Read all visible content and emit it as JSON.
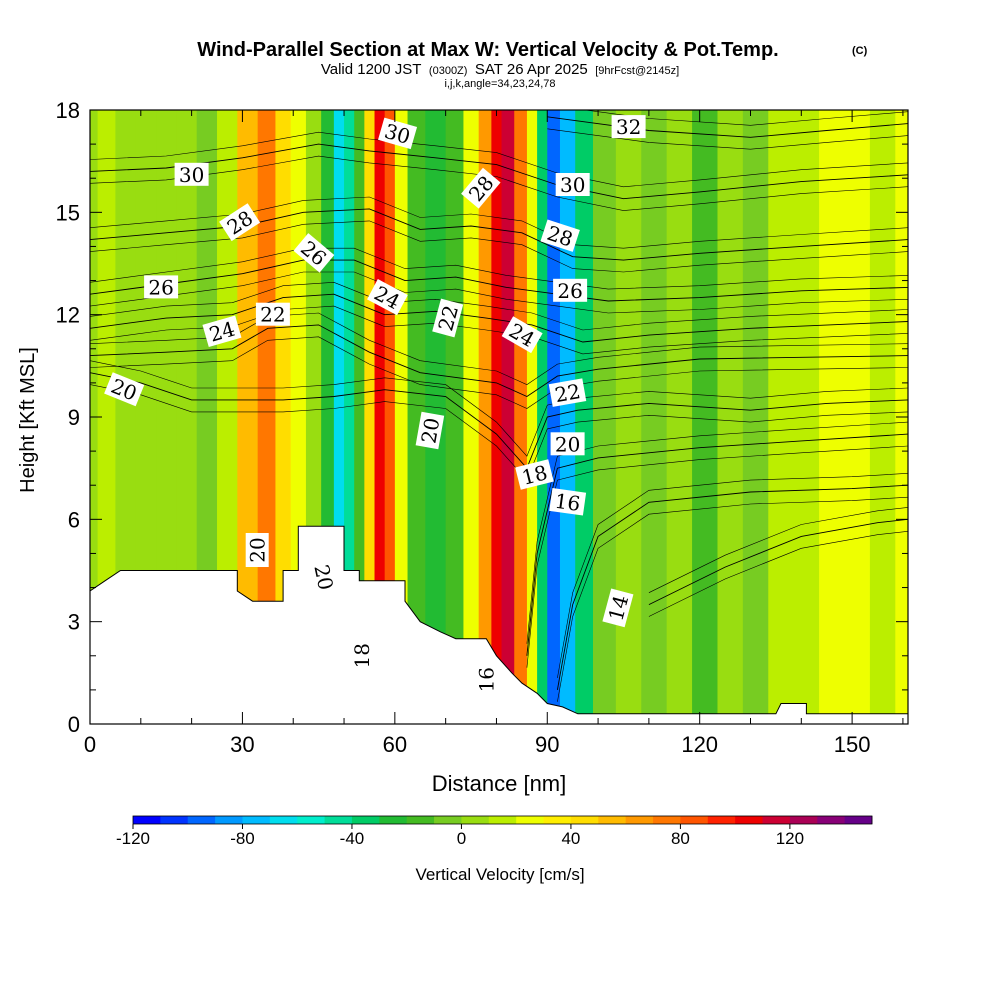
{
  "header": {
    "title": "Wind-Parallel Section at Max W: Vertical Velocity & Pot.Temp.",
    "title_mark": "(C)",
    "valid_prefix": "Valid 1200 JST",
    "valid_utc": "(0300Z)",
    "valid_date": "SAT 26 Apr 2025",
    "forecast_tag": "[9hrFcst@2145z]",
    "section_params": "i,j,k,angle=34,23,24,78"
  },
  "chart_data": {
    "type": "heatmap",
    "xlabel": "Distance [nm]",
    "ylabel": "Height [Kft MSL]",
    "xlim": [
      0,
      161
    ],
    "ylim": [
      0,
      18
    ],
    "x_ticks": [
      0,
      30,
      60,
      90,
      120,
      150
    ],
    "y_ticks": [
      0,
      3,
      6,
      9,
      12,
      15,
      18
    ],
    "x_tick_labels": [
      "0",
      "30",
      "60",
      "90",
      "120",
      "150"
    ],
    "y_tick_labels": [
      "0",
      "3",
      "6",
      "9",
      "12",
      "15",
      "18"
    ],
    "field": "Vertical Velocity",
    "vertical_velocity_columns": [
      {
        "x": 0,
        "w": 5
      },
      {
        "x": 3,
        "w": 10
      },
      {
        "x": 7,
        "w": 0
      },
      {
        "x": 11,
        "w": 5
      },
      {
        "x": 15,
        "w": 0
      },
      {
        "x": 19,
        "w": 8
      },
      {
        "x": 23,
        "w": -8
      },
      {
        "x": 27,
        "w": 15
      },
      {
        "x": 31,
        "w": 55
      },
      {
        "x": 35,
        "w": 70
      },
      {
        "x": 38,
        "w": 45
      },
      {
        "x": 41,
        "w": 20
      },
      {
        "x": 44,
        "w": 0
      },
      {
        "x": 47,
        "w": -30
      },
      {
        "x": 49,
        "w": -65
      },
      {
        "x": 51,
        "w": -50
      },
      {
        "x": 53,
        "w": -15
      },
      {
        "x": 55,
        "w": 45
      },
      {
        "x": 57,
        "w": 105
      },
      {
        "x": 59,
        "w": 80
      },
      {
        "x": 61,
        "w": 25
      },
      {
        "x": 64,
        "w": -15
      },
      {
        "x": 68,
        "w": -30
      },
      {
        "x": 72,
        "w": -20
      },
      {
        "x": 75,
        "w": 20
      },
      {
        "x": 78,
        "w": 65
      },
      {
        "x": 80,
        "w": 100
      },
      {
        "x": 82,
        "w": 110
      },
      {
        "x": 85,
        "w": 75
      },
      {
        "x": 87,
        "w": 25
      },
      {
        "x": 89,
        "w": -40
      },
      {
        "x": 91,
        "w": -95
      },
      {
        "x": 94,
        "w": -75
      },
      {
        "x": 97,
        "w": -35
      },
      {
        "x": 101,
        "w": -5
      },
      {
        "x": 106,
        "w": 5
      },
      {
        "x": 111,
        "w": -5
      },
      {
        "x": 116,
        "w": 8
      },
      {
        "x": 121,
        "w": -15
      },
      {
        "x": 126,
        "w": 8
      },
      {
        "x": 131,
        "w": -8
      },
      {
        "x": 136,
        "w": 10
      },
      {
        "x": 141,
        "w": 15
      },
      {
        "x": 146,
        "w": 20
      },
      {
        "x": 151,
        "w": 25
      },
      {
        "x": 156,
        "w": 18
      },
      {
        "x": 161,
        "w": 22
      }
    ],
    "theta_contours": [
      {
        "level": 14,
        "points": [
          [
            110,
            3.5
          ],
          [
            125,
            4.6
          ],
          [
            140,
            5.5
          ],
          [
            155,
            5.9
          ],
          [
            161,
            6.0
          ]
        ]
      },
      {
        "level": 16,
        "points": [
          [
            92,
            1.0
          ],
          [
            95,
            3.5
          ],
          [
            100,
            5.5
          ],
          [
            110,
            6.5
          ],
          [
            130,
            6.8
          ],
          [
            150,
            6.9
          ],
          [
            161,
            7.0
          ]
        ]
      },
      {
        "level": 18,
        "points": [
          [
            86,
            2.0
          ],
          [
            88,
            5.0
          ],
          [
            92,
            7.5
          ],
          [
            100,
            7.8
          ],
          [
            120,
            8.1
          ],
          [
            140,
            8.3
          ],
          [
            161,
            8.5
          ]
        ]
      },
      {
        "level": 20,
        "points": [
          [
            0,
            10.3
          ],
          [
            10,
            10.0
          ],
          [
            20,
            9.5
          ],
          [
            27,
            9.5
          ],
          [
            38,
            9.5
          ],
          [
            48,
            9.6
          ],
          [
            58,
            9.8
          ],
          [
            70,
            9.6
          ],
          [
            80,
            8.5
          ],
          [
            86,
            7.5
          ],
          [
            90,
            9.0
          ],
          [
            96,
            9.2
          ],
          [
            110,
            9.4
          ],
          [
            130,
            9.2
          ],
          [
            145,
            9.4
          ],
          [
            161,
            9.5
          ]
        ]
      },
      {
        "level": 22,
        "points": [
          [
            0,
            10.8
          ],
          [
            15,
            10.9
          ],
          [
            28,
            11.0
          ],
          [
            35,
            11.6
          ],
          [
            45,
            11.7
          ],
          [
            55,
            10.9
          ],
          [
            65,
            10.3
          ],
          [
            80,
            10.0
          ],
          [
            86,
            9.6
          ],
          [
            92,
            10.2
          ],
          [
            100,
            10.4
          ],
          [
            120,
            10.7
          ],
          [
            161,
            10.8
          ]
        ]
      },
      {
        "level": 24,
        "points": [
          [
            0,
            11.6
          ],
          [
            15,
            11.9
          ],
          [
            28,
            12.0
          ],
          [
            38,
            12.5
          ],
          [
            48,
            12.6
          ],
          [
            58,
            12.0
          ],
          [
            68,
            12.1
          ],
          [
            78,
            11.9
          ],
          [
            87,
            11.7
          ],
          [
            97,
            11.2
          ],
          [
            110,
            11.4
          ],
          [
            130,
            11.6
          ],
          [
            161,
            11.8
          ]
        ]
      },
      {
        "level": 26,
        "points": [
          [
            0,
            12.6
          ],
          [
            15,
            12.9
          ],
          [
            30,
            13.2
          ],
          [
            42,
            13.6
          ],
          [
            52,
            13.6
          ],
          [
            62,
            13.0
          ],
          [
            72,
            13.1
          ],
          [
            82,
            12.8
          ],
          [
            92,
            12.6
          ],
          [
            102,
            12.4
          ],
          [
            120,
            12.5
          ],
          [
            140,
            12.7
          ],
          [
            161,
            12.8
          ]
        ]
      },
      {
        "level": 28,
        "points": [
          [
            0,
            14.2
          ],
          [
            15,
            14.4
          ],
          [
            30,
            14.6
          ],
          [
            42,
            15.0
          ],
          [
            55,
            15.1
          ],
          [
            65,
            14.5
          ],
          [
            75,
            14.6
          ],
          [
            85,
            14.4
          ],
          [
            95,
            13.7
          ],
          [
            105,
            13.6
          ],
          [
            120,
            13.8
          ],
          [
            140,
            14.0
          ],
          [
            161,
            14.2
          ]
        ]
      },
      {
        "level": 30,
        "points": [
          [
            0,
            16.2
          ],
          [
            15,
            16.3
          ],
          [
            30,
            16.6
          ],
          [
            45,
            17.0
          ],
          [
            55,
            16.8
          ],
          [
            68,
            16.6
          ],
          [
            80,
            16.4
          ],
          [
            92,
            15.8
          ],
          [
            105,
            15.4
          ],
          [
            120,
            15.6
          ],
          [
            140,
            15.9
          ],
          [
            161,
            16.1
          ]
        ]
      },
      {
        "level": 32,
        "points": [
          [
            90,
            17.8
          ],
          [
            110,
            17.4
          ],
          [
            130,
            17.2
          ],
          [
            145,
            17.4
          ],
          [
            161,
            17.6
          ]
        ]
      }
    ],
    "terrain": [
      [
        0,
        3.9
      ],
      [
        3,
        4.2
      ],
      [
        6,
        4.5
      ],
      [
        10,
        4.5
      ],
      [
        20,
        4.5
      ],
      [
        29,
        4.5
      ],
      [
        29,
        3.9
      ],
      [
        32,
        3.6
      ],
      [
        38,
        3.6
      ],
      [
        38,
        4.5
      ],
      [
        41,
        4.5
      ],
      [
        41,
        5.8
      ],
      [
        50,
        5.8
      ],
      [
        50,
        4.5
      ],
      [
        53,
        4.5
      ],
      [
        53,
        4.2
      ],
      [
        62,
        4.2
      ],
      [
        62,
        3.6
      ],
      [
        65,
        3.0
      ],
      [
        69,
        2.7
      ],
      [
        72,
        2.5
      ],
      [
        78,
        2.5
      ],
      [
        80,
        2.0
      ],
      [
        83,
        1.5
      ],
      [
        85,
        1.2
      ],
      [
        88,
        0.9
      ],
      [
        90,
        0.6
      ],
      [
        93,
        0.5
      ],
      [
        96,
        0.3
      ],
      [
        135,
        0.3
      ],
      [
        136,
        0.6
      ],
      [
        141,
        0.6
      ],
      [
        141,
        0.3
      ],
      [
        161,
        0.3
      ]
    ],
    "contour_labels": [
      {
        "text": "30",
        "x": 20,
        "y": 16.1,
        "angle": 0
      },
      {
        "text": "28",
        "x": 29.5,
        "y": 14.7,
        "angle": -33
      },
      {
        "text": "26",
        "x": 44,
        "y": 13.8,
        "angle": 40
      },
      {
        "text": "26",
        "x": 14,
        "y": 12.8,
        "angle": 0
      },
      {
        "text": "24",
        "x": 26,
        "y": 11.5,
        "angle": -16
      },
      {
        "text": "22",
        "x": 36,
        "y": 12.0,
        "angle": 0
      },
      {
        "text": "20",
        "x": 6.7,
        "y": 9.8,
        "angle": 22
      },
      {
        "text": "30",
        "x": 60.5,
        "y": 17.3,
        "angle": 16
      },
      {
        "text": "24",
        "x": 58.5,
        "y": 12.5,
        "angle": 28
      },
      {
        "text": "28",
        "x": 77,
        "y": 15.7,
        "angle": -50
      },
      {
        "text": "22",
        "x": 70.5,
        "y": 11.9,
        "angle": -75
      },
      {
        "text": "20",
        "x": 67,
        "y": 8.6,
        "angle": -80
      },
      {
        "text": "32",
        "x": 106,
        "y": 17.5,
        "angle": 0
      },
      {
        "text": "30",
        "x": 95,
        "y": 15.8,
        "angle": 0
      },
      {
        "text": "28",
        "x": 92.5,
        "y": 14.3,
        "angle": 18
      },
      {
        "text": "26",
        "x": 94.5,
        "y": 12.7,
        "angle": 0
      },
      {
        "text": "24",
        "x": 85,
        "y": 11.4,
        "angle": 30
      },
      {
        "text": "22",
        "x": 94,
        "y": 9.7,
        "angle": -10
      },
      {
        "text": "20",
        "x": 94,
        "y": 8.2,
        "angle": 0
      },
      {
        "text": "18",
        "x": 87.5,
        "y": 7.3,
        "angle": -14
      },
      {
        "text": "16",
        "x": 94,
        "y": 6.5,
        "angle": 8
      },
      {
        "text": "14",
        "x": 104,
        "y": 3.4,
        "angle": -75
      },
      {
        "text": "20",
        "x": 33,
        "y": 5.1,
        "angle": -90
      },
      {
        "text": "20",
        "x": 46,
        "y": 4.3,
        "angle": 78
      },
      {
        "text": "18",
        "x": 53.5,
        "y": 2.0,
        "angle": -90
      },
      {
        "text": "16",
        "x": 78,
        "y": 1.3,
        "angle": -90
      }
    ],
    "colorbar": {
      "label": "Vertical Velocity [cm/s]",
      "range": [
        -120,
        150
      ],
      "step": 10,
      "tick_values": [
        -120,
        -80,
        -40,
        0,
        40,
        80,
        120
      ],
      "tick_labels": [
        "-120",
        "-80",
        "-40",
        "0",
        "40",
        "80",
        "120"
      ],
      "colors": [
        "#0000ff",
        "#0033ff",
        "#0066ff",
        "#0099ff",
        "#00bbff",
        "#00ddee",
        "#00eecc",
        "#00dd99",
        "#00cc66",
        "#22bb33",
        "#44bb22",
        "#77cc22",
        "#99dd11",
        "#bbee00",
        "#eeff00",
        "#ffee00",
        "#ffdd00",
        "#ffbb00",
        "#ff9900",
        "#ff7700",
        "#ff5500",
        "#ff2200",
        "#ee0000",
        "#cc0033",
        "#aa0055",
        "#880077",
        "#660088"
      ]
    }
  }
}
